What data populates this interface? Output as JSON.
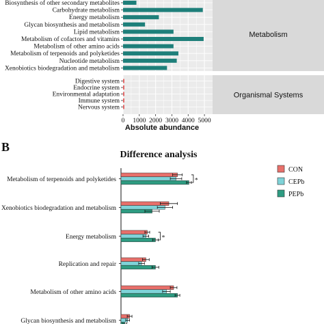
{
  "panel_b_label": "B",
  "chart_data": [
    {
      "type": "bar",
      "orientation": "horizontal",
      "xlabel": "Absolute abundance",
      "xlim": [
        0,
        5500
      ],
      "xticks": [
        "0",
        "1000",
        "2000",
        "3000",
        "4000",
        "5000"
      ],
      "grid": true,
      "groups": [
        {
          "name": "Metabolism",
          "categories": [
            "Biosynthesis of other secondary metabolites",
            "Carbohydrate metabolism",
            "Energy metabolism",
            "Glycan biosynthesis and metabolism",
            "Lipid metabolism",
            "Metabolism of cofactors and vitamins",
            "Metabolism of other amino acids",
            "Metabolism of terpenoids and polyketides",
            "Nucleotide metabolism",
            "Xenobiotics biodegradation and metabolism"
          ],
          "values": [
            820,
            4900,
            2200,
            1350,
            3100,
            4950,
            3100,
            3400,
            3300,
            2700
          ]
        },
        {
          "name": "Organismal Systems",
          "categories": [
            "Digestive system",
            "Endocrine system",
            "Environmental adaptation",
            "Immune system",
            "Nervous system"
          ],
          "values": [
            40,
            25,
            45,
            12,
            8
          ]
        }
      ],
      "bar_color": "#1e7f7a"
    },
    {
      "type": "bar",
      "orientation": "horizontal",
      "title": "Difference analysis",
      "categories": [
        "Metabolism of terpenoids and polyketides",
        "Xenobiotics biodegradation and metabolism",
        "Energy metabolism",
        "Replication and repair",
        "Metabolism of other amino acids",
        "Glycan biosynthesis and metabolism"
      ],
      "series": [
        {
          "name": "CON",
          "color": "#e8706b",
          "values": [
            1.18,
            1.0,
            0.55,
            0.52,
            1.1,
            0.18
          ],
          "errors": [
            0.1,
            0.18,
            0.05,
            0.07,
            0.07,
            0.05
          ]
        },
        {
          "name": "CEPb",
          "color": "#7fd3d8",
          "values": [
            1.15,
            0.92,
            0.52,
            0.43,
            0.95,
            0.14
          ],
          "errors": [
            0.12,
            0.16,
            0.06,
            0.06,
            0.08,
            0.04
          ]
        },
        {
          "name": "PEPb",
          "color": "#2e9c82",
          "values": [
            1.42,
            0.65,
            0.72,
            0.72,
            1.18,
            0.08
          ],
          "errors": [
            0.05,
            0.15,
            0.06,
            0.07,
            0.05,
            0.04
          ]
        }
      ],
      "annotations": [
        "*",
        "*"
      ],
      "legend": "top-right"
    }
  ]
}
